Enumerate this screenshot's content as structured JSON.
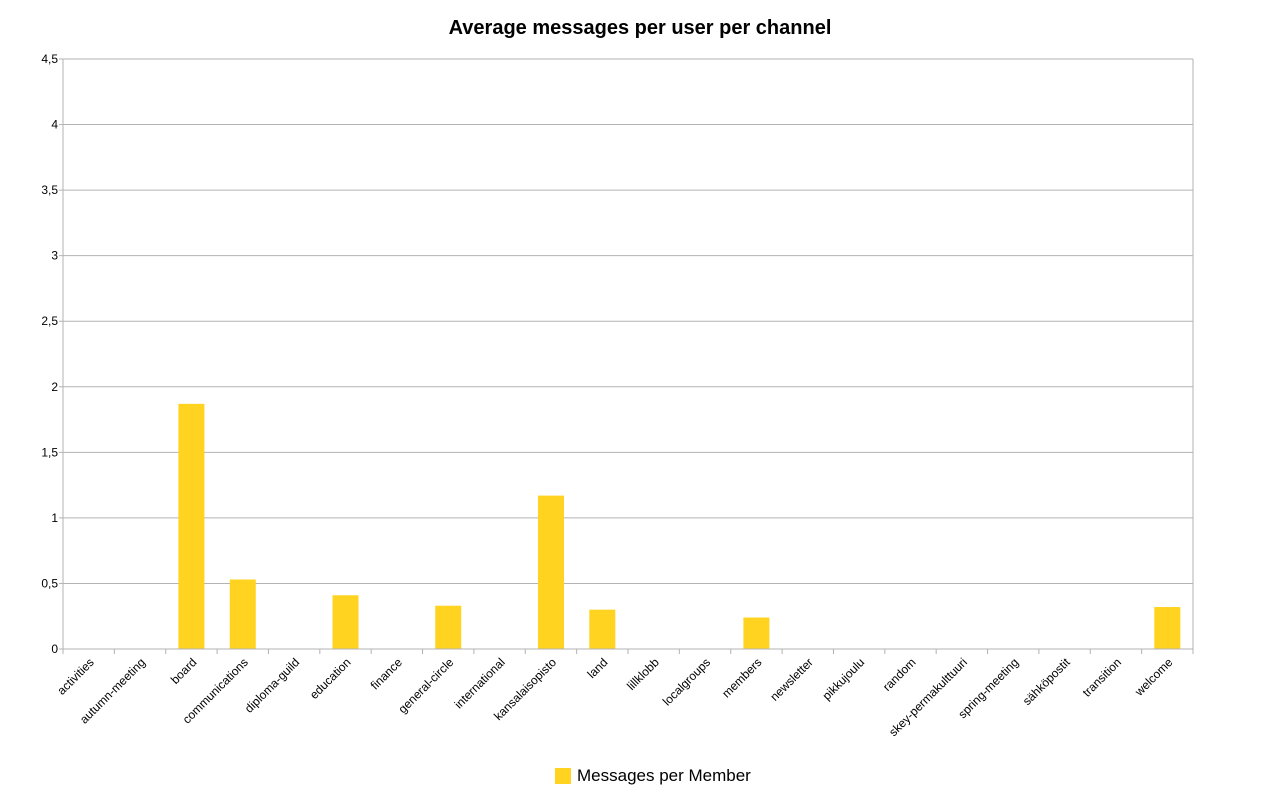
{
  "chart_data": {
    "type": "bar",
    "title": "Average messages per user per channel",
    "xlabel": "",
    "ylabel": "",
    "ylim": [
      0,
      4.5
    ],
    "yticks": [
      "0",
      "0,5",
      "1",
      "1,5",
      "2",
      "2,5",
      "3",
      "3,5",
      "4",
      "4,5"
    ],
    "grid": true,
    "legend_position": "bottom",
    "categories": [
      "activities",
      "autumn-meeting",
      "board",
      "communications",
      "diploma-guild",
      "education",
      "finance",
      "general-circle",
      "international",
      "kansalaisopisto",
      "land",
      "lillklobb",
      "localgroups",
      "members",
      "newsletter",
      "pikkujoulu",
      "random",
      "skey-permakulttuuri",
      "spring-meeting",
      "sähköpostit",
      "transition",
      "welcome"
    ],
    "series": [
      {
        "name": "Messages per Member",
        "color": "#ffd320",
        "values": [
          0,
          0,
          1.87,
          0.53,
          0,
          0.41,
          0,
          0.33,
          0,
          1.17,
          0.3,
          0,
          0,
          0.24,
          0,
          0,
          0,
          0,
          0,
          0,
          0,
          0.32
        ]
      }
    ]
  }
}
